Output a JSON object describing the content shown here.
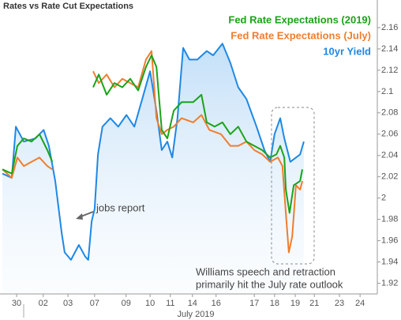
{
  "chart_data": {
    "type": "line",
    "title": "Rates vs Rate Cut Expectations",
    "x_axis_label": "July 2019",
    "xlim": [
      0,
      100
    ],
    "xticks": [
      {
        "value": 3.8,
        "label": "30"
      },
      {
        "value": 10.9,
        "label": "02"
      },
      {
        "value": 17.5,
        "label": "03"
      },
      {
        "value": 24.6,
        "label": "07"
      },
      {
        "value": 33,
        "label": "09"
      },
      {
        "value": 39.4,
        "label": "10"
      },
      {
        "value": 44.8,
        "label": "11"
      },
      {
        "value": 50.7,
        "label": "14"
      },
      {
        "value": 57,
        "label": "16"
      },
      {
        "value": 67.2,
        "label": "17"
      },
      {
        "value": 72.6,
        "label": "18"
      },
      {
        "value": 78.1,
        "label": "19"
      },
      {
        "value": 83.2,
        "label": "21"
      },
      {
        "value": 89.9,
        "label": "23"
      },
      {
        "value": 95.4,
        "label": "24"
      }
    ],
    "ylim": [
      1.91,
      2.18
    ],
    "yticks": [
      1.92,
      1.94,
      1.96,
      1.98,
      2,
      2.02,
      2.04,
      2.06,
      2.08,
      2.1,
      2.12,
      2.14,
      2.16
    ],
    "annotations": [
      "jobs report",
      "Williams speech and retraction",
      "primarily hit the July rate outlook"
    ],
    "series": [
      {
        "name": "Fed Rate Expectations (2019)",
        "color": "#1aa31a",
        "x": [
          0,
          2.5,
          4,
          5.7,
          7.8,
          9.9,
          12,
          13.3,
          14.1,
          24.2,
          25.7,
          27.8,
          29.9,
          32,
          34.1,
          36.2,
          38.3,
          39.8,
          41.1,
          42.5,
          44,
          45.7,
          47.8,
          50.9,
          53.1,
          54.5,
          56.6,
          58.7,
          60.8,
          62.9,
          65.1,
          67.2,
          69.3,
          71.4,
          73.1,
          74.1,
          75.2,
          75.6,
          76.6,
          77.7,
          79.4,
          80
        ],
        "values": [
          2.027,
          2.023,
          2.049,
          2.056,
          2.053,
          2.06,
          2.045,
          2.034,
          null,
          2.104,
          2.116,
          2.097,
          2.108,
          2.104,
          2.112,
          2.101,
          2.123,
          2.134,
          2.123,
          2.064,
          2.056,
          2.082,
          2.09,
          2.09,
          2.097,
          2.071,
          2.067,
          2.071,
          2.06,
          2.067,
          2.053,
          2.049,
          2.045,
          2.038,
          2.041,
          2.049,
          2.038,
          2.008,
          1.986,
          2.012,
          2.016,
          2.027
        ]
      },
      {
        "name": "Fed Rate Expectations (July)",
        "color": "#f07d2e",
        "x": [
          0,
          2.5,
          4,
          5.7,
          7.8,
          9.9,
          12,
          13.3,
          14.1,
          24.2,
          25.7,
          27.8,
          29.9,
          32,
          34.1,
          36.2,
          38.3,
          39.8,
          41.1,
          42.5,
          44,
          45.7,
          47.8,
          50.9,
          53.1,
          55.2,
          58.3,
          60.8,
          62.9,
          65.1,
          67.2,
          69.3,
          71.4,
          73.5,
          74.7,
          75.6,
          76.4,
          77.3,
          78.3,
          79.4,
          80
        ],
        "values": [
          2.027,
          2.019,
          2.038,
          2.03,
          2.034,
          2.038,
          2.03,
          2.027,
          null,
          2.119,
          2.108,
          2.116,
          2.104,
          2.112,
          2.108,
          2.104,
          2.13,
          2.138,
          2.075,
          2.06,
          2.064,
          2.067,
          2.075,
          2.071,
          2.078,
          2.064,
          2.06,
          2.049,
          2.049,
          2.053,
          2.045,
          2.041,
          2.034,
          2.038,
          2.03,
          1.986,
          1.949,
          1.964,
          2.012,
          2.008,
          2.016
        ]
      },
      {
        "name": "10yr Yield",
        "color": "#1e88e5",
        "x": [
          0,
          2.5,
          3.6,
          5.7,
          8.8,
          11,
          12.4,
          14.1,
          15.8,
          16.6,
          18.3,
          20.4,
          22.1,
          22.9,
          23.8,
          24.6,
          25.5,
          26.7,
          28.8,
          30.9,
          33.1,
          35.2,
          37.3,
          39.4,
          41.1,
          42.5,
          44,
          45.3,
          46.7,
          48.2,
          49.9,
          52,
          54.5,
          56.2,
          58.7,
          60.8,
          62.9,
          65.1,
          67.8,
          69.9,
          71.4,
          72.6,
          74.1,
          75.2,
          76.8,
          78.3,
          79.4,
          80.4
        ],
        "values": [
          2.023,
          2.019,
          2.067,
          2.053,
          2.056,
          2.064,
          2.049,
          2.016,
          1.968,
          1.949,
          1.942,
          1.956,
          1.945,
          1.942,
          1.978,
          1.99,
          2.041,
          2.067,
          2.075,
          2.067,
          2.078,
          2.067,
          2.093,
          2.119,
          2.082,
          2.045,
          2.053,
          2.038,
          2.075,
          2.141,
          2.13,
          2.13,
          2.138,
          2.134,
          2.145,
          2.127,
          2.104,
          2.093,
          2.067,
          2.045,
          2.034,
          2.06,
          2.075,
          2.056,
          2.034,
          2.038,
          2.041,
          2.053
        ]
      }
    ]
  }
}
